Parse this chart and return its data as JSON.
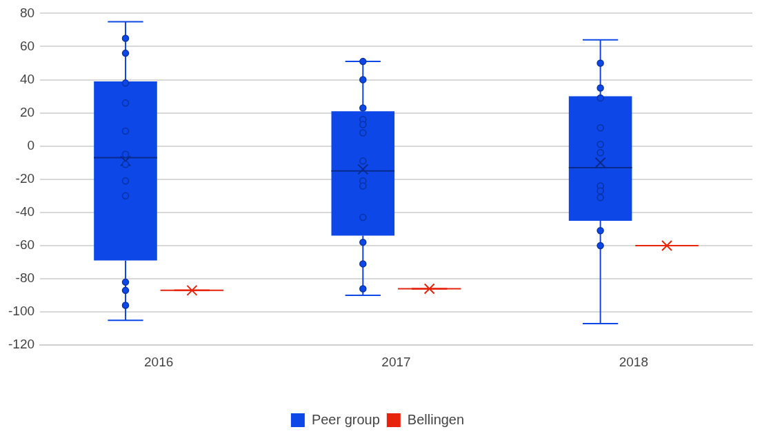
{
  "chart_data": {
    "type": "box",
    "categories": [
      "2016",
      "2017",
      "2018"
    ],
    "series": [
      {
        "name": "Peer group",
        "color": "#0d47e8",
        "boxes": [
          {
            "low": -105,
            "q1": -69,
            "median": -7,
            "q3": 39,
            "high": 75,
            "mean": -9,
            "outliers": [
              65,
              56,
              38,
              26,
              9,
              -5,
              -11,
              -21,
              -30,
              -82,
              -87,
              -96
            ]
          },
          {
            "low": -90,
            "q1": -54,
            "median": -15,
            "q3": 21,
            "high": 51,
            "mean": -14,
            "outliers": [
              51,
              40,
              23,
              16,
              13,
              8,
              -9,
              -21,
              -24,
              -43,
              -58,
              -71,
              -86
            ]
          },
          {
            "low": -107,
            "q1": -45,
            "median": -13,
            "q3": 30,
            "high": 64,
            "mean": -10,
            "outliers": [
              50,
              35,
              29,
              11,
              1,
              -4,
              -24,
              -27,
              -31,
              -51,
              -60
            ]
          }
        ]
      },
      {
        "name": "Bellingen",
        "color": "#e8230c",
        "boxes": [
          {
            "low": -87,
            "q1": -87,
            "median": -87,
            "q3": -87,
            "high": -87,
            "mean": -87
          },
          {
            "low": -86,
            "q1": -86,
            "median": -86,
            "q3": -86,
            "high": -86,
            "mean": -86
          },
          {
            "low": -60,
            "q1": -60,
            "median": -60,
            "q3": -60,
            "high": -60,
            "mean": -60
          }
        ]
      }
    ],
    "ylim": [
      -120,
      80
    ],
    "yticks": [
      -120,
      -100,
      -80,
      -60,
      -40,
      -20,
      0,
      20,
      40,
      60,
      80
    ],
    "grid": "y",
    "legend": "bottom"
  }
}
